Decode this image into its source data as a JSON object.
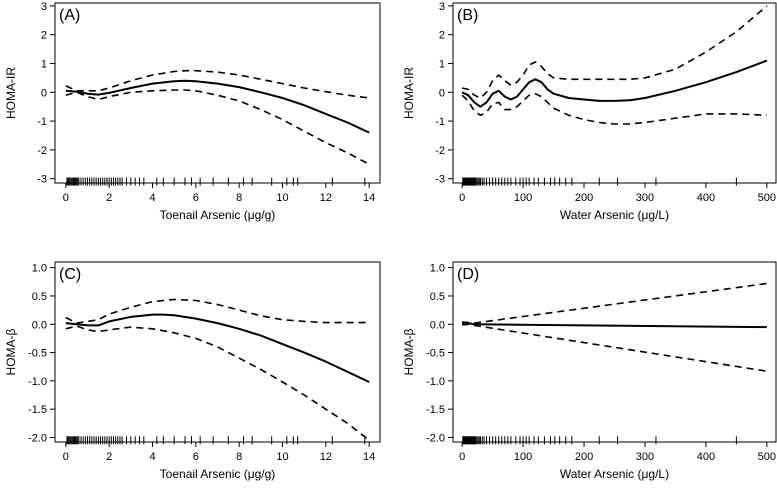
{
  "figure": {
    "description_free": true
  },
  "chart_data": [
    {
      "type": "line",
      "panel_label": "(A)",
      "xlabel": "Toenail Arsenic (μg/g)",
      "ylabel": "HOMA-IR",
      "xlim": [
        -0.5,
        14.5
      ],
      "ylim": [
        -3.15,
        3.1
      ],
      "xticks": [
        0,
        2,
        4,
        6,
        8,
        10,
        12,
        14
      ],
      "yticks": [
        -3,
        -2,
        -1,
        0,
        1,
        2,
        3
      ],
      "series": [
        {
          "name": "estimate",
          "style": "solid",
          "x": [
            0,
            0.5,
            1,
            1.5,
            2,
            3,
            4,
            5,
            5.5,
            6,
            7,
            8,
            9,
            10,
            11,
            12,
            13,
            14
          ],
          "y": [
            0.05,
            0.02,
            -0.05,
            -0.08,
            -0.02,
            0.15,
            0.3,
            0.38,
            0.4,
            0.38,
            0.3,
            0.18,
            0.0,
            -0.2,
            -0.45,
            -0.75,
            -1.05,
            -1.4
          ]
        },
        {
          "name": "upper 95% CI",
          "style": "dashed",
          "x": [
            0,
            0.5,
            1,
            1.5,
            2,
            3,
            4,
            5,
            5.5,
            6,
            7,
            8,
            9,
            10,
            11,
            12,
            13,
            14
          ],
          "y": [
            0.22,
            0.05,
            0.05,
            0.05,
            0.15,
            0.4,
            0.6,
            0.72,
            0.75,
            0.75,
            0.7,
            0.6,
            0.45,
            0.3,
            0.15,
            0.02,
            -0.1,
            -0.2
          ]
        },
        {
          "name": "lower 95% CI",
          "style": "dashed",
          "x": [
            0,
            0.5,
            1,
            1.5,
            2,
            3,
            4,
            5,
            5.5,
            6,
            7,
            8,
            9,
            10,
            11,
            12,
            13,
            14
          ],
          "y": [
            -0.1,
            0.0,
            -0.15,
            -0.25,
            -0.15,
            0.0,
            0.05,
            0.08,
            0.08,
            0.05,
            -0.1,
            -0.3,
            -0.6,
            -0.95,
            -1.35,
            -1.75,
            -2.1,
            -2.5
          ]
        }
      ],
      "rug_y": -3.1,
      "rug": [
        0.05,
        0.1,
        0.15,
        0.2,
        0.25,
        0.3,
        0.35,
        0.4,
        0.45,
        0.5,
        0.55,
        0.6,
        0.7,
        0.8,
        0.9,
        1.0,
        1.1,
        1.2,
        1.3,
        1.4,
        1.5,
        1.6,
        1.7,
        1.8,
        1.9,
        2.0,
        2.1,
        2.2,
        2.3,
        2.4,
        2.5,
        2.6,
        2.8,
        3.0,
        3.2,
        3.4,
        3.6,
        4.2,
        4.5,
        5.0,
        5.5,
        5.8,
        6.2,
        6.8,
        7.5,
        8.2,
        8.6,
        9.5,
        10.2,
        10.5,
        10.7,
        12.3,
        13.8
      ]
    },
    {
      "type": "line",
      "panel_label": "(B)",
      "xlabel": "Water Arsenic (μg/L)",
      "ylabel": "HOMA-IR",
      "xlim": [
        -15,
        515
      ],
      "ylim": [
        -3.15,
        3.1
      ],
      "xticks": [
        0,
        100,
        200,
        300,
        400,
        500
      ],
      "yticks": [
        -3,
        -2,
        -1,
        0,
        1,
        2,
        3
      ],
      "series": [
        {
          "name": "estimate",
          "style": "solid",
          "x": [
            0,
            10,
            20,
            30,
            40,
            50,
            60,
            70,
            80,
            90,
            100,
            110,
            120,
            130,
            140,
            150,
            175,
            200,
            225,
            250,
            275,
            300,
            350,
            400,
            450,
            500
          ],
          "y": [
            0.0,
            -0.1,
            -0.35,
            -0.5,
            -0.35,
            -0.05,
            0.05,
            -0.15,
            -0.25,
            -0.15,
            0.1,
            0.35,
            0.45,
            0.35,
            0.1,
            -0.05,
            -0.2,
            -0.25,
            -0.3,
            -0.3,
            -0.28,
            -0.2,
            0.05,
            0.35,
            0.7,
            1.1
          ]
        },
        {
          "name": "upper 95% CI",
          "style": "dashed",
          "x": [
            0,
            10,
            20,
            30,
            40,
            50,
            60,
            70,
            80,
            90,
            100,
            110,
            120,
            130,
            140,
            150,
            175,
            200,
            225,
            250,
            275,
            300,
            350,
            400,
            450,
            500
          ],
          "y": [
            0.15,
            0.1,
            -0.1,
            -0.2,
            0.0,
            0.4,
            0.6,
            0.4,
            0.25,
            0.35,
            0.6,
            0.95,
            1.05,
            0.9,
            0.65,
            0.5,
            0.45,
            0.45,
            0.45,
            0.45,
            0.45,
            0.5,
            0.8,
            1.4,
            2.1,
            3.0
          ]
        },
        {
          "name": "lower 95% CI",
          "style": "dashed",
          "x": [
            0,
            10,
            20,
            30,
            40,
            50,
            60,
            70,
            80,
            90,
            100,
            110,
            120,
            130,
            140,
            150,
            175,
            200,
            225,
            250,
            275,
            300,
            350,
            400,
            450,
            500
          ],
          "y": [
            -0.1,
            -0.3,
            -0.65,
            -0.8,
            -0.7,
            -0.4,
            -0.35,
            -0.6,
            -0.6,
            -0.5,
            -0.3,
            -0.1,
            -0.05,
            -0.15,
            -0.35,
            -0.55,
            -0.8,
            -0.95,
            -1.05,
            -1.1,
            -1.1,
            -1.05,
            -0.9,
            -0.75,
            -0.75,
            -0.8
          ]
        }
      ],
      "rug_y": -3.1,
      "rug": [
        1,
        2,
        3,
        4,
        5,
        6,
        7,
        8,
        9,
        10,
        11,
        12,
        13,
        14,
        15,
        16,
        17,
        18,
        19,
        20,
        21,
        22,
        24,
        26,
        28,
        30,
        33,
        36,
        40,
        45,
        50,
        55,
        60,
        65,
        70,
        75,
        80,
        88,
        95,
        100,
        105,
        110,
        118,
        125,
        135,
        145,
        152,
        160,
        170,
        180,
        225,
        255,
        318,
        450
      ]
    },
    {
      "type": "line",
      "panel_label": "(C)",
      "xlabel": "Toenail Arsenic (μg/g)",
      "ylabel": "HOMA-β",
      "xlim": [
        -0.5,
        14.5
      ],
      "ylim": [
        -2.08,
        1.1
      ],
      "xticks": [
        0,
        2,
        4,
        6,
        8,
        10,
        12,
        14
      ],
      "yticks": [
        -2.0,
        -1.5,
        -1.0,
        -0.5,
        0.0,
        0.5,
        1.0
      ],
      "ytick_labels": [
        "-2.0",
        "-1.5",
        "-1.0",
        "-0.5",
        "0.0",
        "0.5",
        "1.0"
      ],
      "series": [
        {
          "name": "estimate",
          "style": "solid",
          "x": [
            0,
            0.5,
            1,
            1.5,
            2,
            3,
            4,
            4.5,
            5,
            6,
            7,
            8,
            9,
            10,
            11,
            12,
            13,
            14
          ],
          "y": [
            0.02,
            0.0,
            -0.02,
            -0.02,
            0.05,
            0.13,
            0.17,
            0.17,
            0.16,
            0.1,
            0.02,
            -0.08,
            -0.2,
            -0.35,
            -0.5,
            -0.66,
            -0.84,
            -1.02
          ]
        },
        {
          "name": "upper 95% CI",
          "style": "dashed",
          "x": [
            0,
            0.5,
            1,
            1.5,
            2,
            3,
            4,
            5,
            6,
            7,
            8,
            9,
            10,
            11,
            12,
            13,
            14
          ],
          "y": [
            0.12,
            0.02,
            0.05,
            0.08,
            0.18,
            0.3,
            0.4,
            0.44,
            0.42,
            0.35,
            0.25,
            0.15,
            0.08,
            0.05,
            0.03,
            0.03,
            0.03
          ]
        },
        {
          "name": "lower 95% CI",
          "style": "dashed",
          "x": [
            0,
            0.5,
            1,
            1.5,
            2,
            3,
            4,
            5,
            6,
            7,
            8,
            9,
            10,
            11,
            12,
            13,
            14
          ],
          "y": [
            -0.08,
            -0.03,
            -0.1,
            -0.13,
            -0.1,
            -0.05,
            -0.08,
            -0.15,
            -0.25,
            -0.4,
            -0.6,
            -0.8,
            -1.02,
            -1.25,
            -1.5,
            -1.75,
            -2.05
          ]
        }
      ],
      "rug_y": -2.05,
      "rug": [
        0.05,
        0.1,
        0.15,
        0.2,
        0.25,
        0.3,
        0.35,
        0.4,
        0.45,
        0.5,
        0.55,
        0.6,
        0.7,
        0.8,
        0.9,
        1.0,
        1.1,
        1.2,
        1.3,
        1.4,
        1.5,
        1.6,
        1.7,
        1.8,
        1.9,
        2.0,
        2.1,
        2.2,
        2.3,
        2.4,
        2.5,
        2.6,
        2.8,
        3.0,
        3.2,
        3.4,
        3.6,
        4.2,
        4.5,
        5.0,
        5.5,
        5.8,
        6.2,
        6.8,
        7.5,
        8.2,
        8.6,
        9.5,
        10.2,
        10.5,
        10.7,
        12.3,
        13.8
      ]
    },
    {
      "type": "line",
      "panel_label": "(D)",
      "xlabel": "Water Arsenic (μg/L)",
      "ylabel": "HOMA-β",
      "xlim": [
        -15,
        515
      ],
      "ylim": [
        -2.08,
        1.1
      ],
      "xticks": [
        0,
        100,
        200,
        300,
        400,
        500
      ],
      "yticks": [
        -2.0,
        -1.5,
        -1.0,
        -0.5,
        0.0,
        0.5,
        1.0
      ],
      "ytick_labels": [
        "-2.0",
        "-1.5",
        "-1.0",
        "-0.5",
        "0.0",
        "0.5",
        "1.0"
      ],
      "series": [
        {
          "name": "estimate",
          "style": "solid",
          "x": [
            0,
            5,
            10,
            20,
            500
          ],
          "y": [
            0.02,
            0.03,
            0.02,
            0.0,
            -0.05
          ]
        },
        {
          "name": "upper 95% CI",
          "style": "dashed",
          "x": [
            0,
            10,
            20,
            500
          ],
          "y": [
            0.04,
            0.03,
            0.02,
            0.72
          ]
        },
        {
          "name": "lower 95% CI",
          "style": "dashed",
          "x": [
            0,
            10,
            20,
            500
          ],
          "y": [
            -0.01,
            0.0,
            -0.02,
            -0.83
          ]
        }
      ],
      "rug_y": -2.05,
      "rug": [
        1,
        2,
        3,
        4,
        5,
        6,
        7,
        8,
        9,
        10,
        11,
        12,
        13,
        14,
        15,
        16,
        17,
        18,
        19,
        20,
        21,
        22,
        24,
        26,
        28,
        30,
        33,
        36,
        40,
        45,
        50,
        55,
        60,
        65,
        70,
        75,
        80,
        88,
        95,
        100,
        105,
        110,
        118,
        125,
        135,
        145,
        152,
        160,
        170,
        180,
        225,
        255,
        318,
        450
      ]
    }
  ]
}
